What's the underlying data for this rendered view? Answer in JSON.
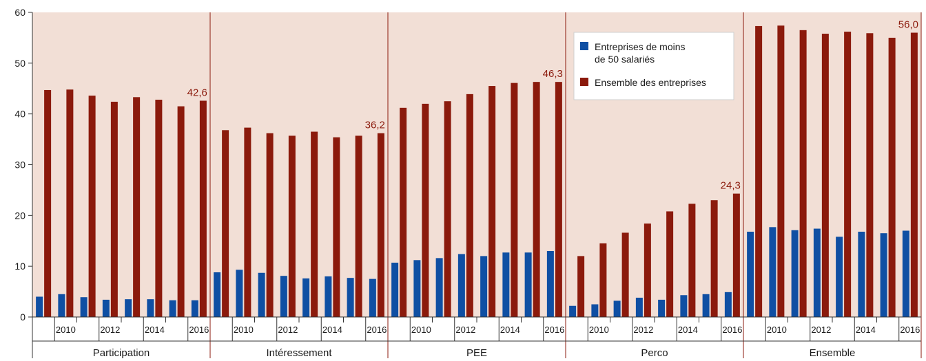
{
  "chart_data": {
    "type": "bar",
    "ylim": [
      0,
      60
    ],
    "yticks": [
      "0",
      "10",
      "20",
      "30",
      "40",
      "50",
      "60"
    ],
    "years": [
      "2009",
      "2010",
      "2011",
      "2012",
      "2013",
      "2014",
      "2015",
      "2016"
    ],
    "year_tick_labels": [
      "",
      "2010",
      "",
      "2012",
      "",
      "2014",
      "",
      "2016"
    ],
    "groups": [
      "Participation",
      "Intéressement",
      "PEE",
      "Perco",
      "Ensemble"
    ],
    "series": [
      {
        "name": "Entreprises de moins de 50 salariés",
        "legend_line1": "Entreprises de moins",
        "legend_line2": "de 50 salariés",
        "color": "#0f4fa3",
        "values": [
          [
            4.0,
            4.5,
            3.9,
            3.4,
            3.5,
            3.5,
            3.3,
            3.3
          ],
          [
            8.8,
            9.3,
            8.7,
            8.1,
            7.6,
            8.0,
            7.7,
            7.5
          ],
          [
            10.7,
            11.2,
            11.6,
            12.4,
            12.0,
            12.7,
            12.7,
            13.0
          ],
          [
            2.2,
            2.5,
            3.2,
            3.8,
            3.4,
            4.3,
            4.5,
            4.9
          ],
          [
            16.8,
            17.7,
            17.1,
            17.4,
            15.8,
            16.8,
            16.5,
            17.0
          ]
        ]
      },
      {
        "name": "Ensemble des entreprises",
        "color": "#8b1a0c",
        "values": [
          [
            44.7,
            44.8,
            43.6,
            42.4,
            43.3,
            42.8,
            41.5,
            42.6
          ],
          [
            36.8,
            37.3,
            36.2,
            35.7,
            36.5,
            35.4,
            35.7,
            36.2
          ],
          [
            41.2,
            42.0,
            42.5,
            43.9,
            45.5,
            46.1,
            46.3,
            46.3
          ],
          [
            12.0,
            14.5,
            16.6,
            18.4,
            20.8,
            22.3,
            23.0,
            24.3
          ],
          [
            57.3,
            57.4,
            56.5,
            55.8,
            56.2,
            55.9,
            55.0,
            56.0
          ]
        ]
      }
    ],
    "data_labels": [
      "42,6",
      "36,2",
      "46,3",
      "24,3",
      "56,0"
    ],
    "background_color": "#f2dfd6",
    "legend_position": "top-right",
    "grid": false
  }
}
